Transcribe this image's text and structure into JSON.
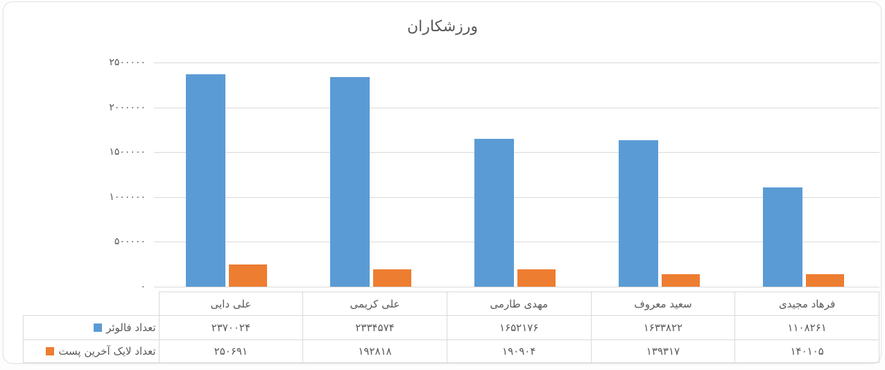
{
  "title": "ورزشکاران",
  "colors": {
    "followers_blue": "#5B9BD5",
    "likes_orange": "#ED7D31",
    "gridline": "#D9D9D9",
    "text_gray": "#595959",
    "table_border": "#D9D9D9"
  },
  "chart_data": {
    "type": "bar",
    "title": "ورزشکاران",
    "xlabel": "",
    "ylabel": "",
    "grid": true,
    "legend_position": "table-left",
    "ylim": [
      0,
      2500000
    ],
    "ytick_step": 500000,
    "yticks_fa": [
      "۰",
      "۵۰۰۰۰۰",
      "۱۰۰۰۰۰۰",
      "۱۵۰۰۰۰۰",
      "۲۰۰۰۰۰۰",
      "۲۵۰۰۰۰۰"
    ],
    "categories": [
      "علی دایی",
      "علی کریمی",
      "مهدی طارمی",
      "سعید معروف",
      "فرهاد مجیدی"
    ],
    "series": [
      {
        "name": "تعداد فالوئر",
        "color": "#5B9BD5",
        "values": [
          2370024,
          2334574,
          1652176,
          1633822,
          1108261
        ],
        "labels_fa": [
          "۲۳۷۰۰۲۴",
          "۲۳۳۴۵۷۴",
          "۱۶۵۲۱۷۶",
          "۱۶۳۳۸۲۲",
          "۱۱۰۸۲۶۱"
        ]
      },
      {
        "name": "تعداد لایک آخرین پست",
        "color": "#ED7D31",
        "values": [
          250691,
          192818,
          190904,
          139317,
          140105
        ],
        "labels_fa": [
          "۲۵۰۶۹۱",
          "۱۹۲۸۱۸",
          "۱۹۰۹۰۴",
          "۱۳۹۳۱۷",
          "۱۴۰۱۰۵"
        ]
      }
    ]
  }
}
